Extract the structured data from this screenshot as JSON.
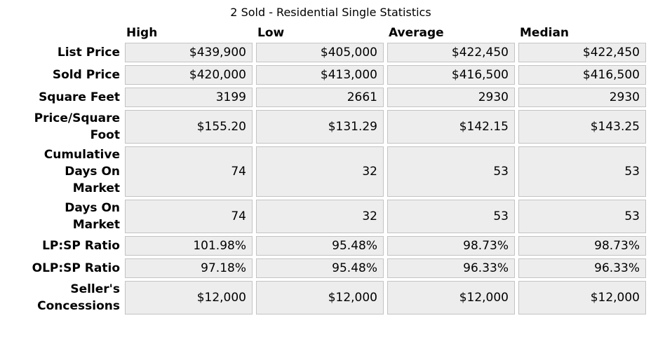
{
  "title": "2 Sold - Residential Single Statistics",
  "colors": {
    "cell_bg": "#ededed",
    "cell_border": "#c3c3c3",
    "text": "#000000",
    "page_bg": "#ffffff"
  },
  "table": {
    "columns": [
      "High",
      "Low",
      "Average",
      "Median"
    ],
    "rows": [
      {
        "label": "List Price",
        "values": [
          "$439,900",
          "$405,000",
          "$422,450",
          "$422,450"
        ]
      },
      {
        "label": "Sold Price",
        "values": [
          "$420,000",
          "$413,000",
          "$416,500",
          "$416,500"
        ]
      },
      {
        "label": "Square Feet",
        "values": [
          "3199",
          "2661",
          "2930",
          "2930"
        ]
      },
      {
        "label": "Price/Square\nFoot",
        "values": [
          "$155.20",
          "$131.29",
          "$142.15",
          "$143.25"
        ]
      },
      {
        "label": "Cumulative\nDays On\nMarket",
        "values": [
          "74",
          "32",
          "53",
          "53"
        ]
      },
      {
        "label": "Days On\nMarket",
        "values": [
          "74",
          "32",
          "53",
          "53"
        ]
      },
      {
        "label": "LP:SP Ratio",
        "values": [
          "101.98%",
          "95.48%",
          "98.73%",
          "98.73%"
        ]
      },
      {
        "label": "OLP:SP Ratio",
        "values": [
          "97.18%",
          "95.48%",
          "96.33%",
          "96.33%"
        ]
      },
      {
        "label": "Seller's\nConcessions",
        "values": [
          "$12,000",
          "$12,000",
          "$12,000",
          "$12,000"
        ]
      }
    ]
  }
}
